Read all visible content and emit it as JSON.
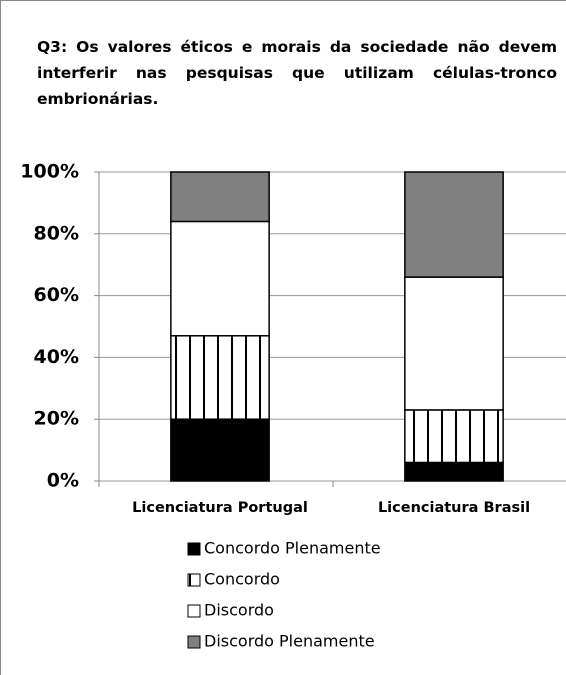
{
  "chart_data": {
    "type": "stacked_bar",
    "title": "Q3: Os valores éticos e morais da sociedade não devem interferir nas pesquisas que utilizam células-tronco embrionárias.",
    "categories": [
      "Licenciatura Portugal",
      "Licenciatura Brasil"
    ],
    "series": [
      {
        "name": "Concordo Plenamente",
        "color": "#000000",
        "values": [
          20,
          6
        ]
      },
      {
        "name": "Concordo",
        "color": "#ffffff",
        "pattern": "vertical-stripes",
        "values": [
          27,
          17
        ]
      },
      {
        "name": "Discordo",
        "color": "#ffffff",
        "values": [
          37,
          43
        ]
      },
      {
        "name": "Discordo Plenamente",
        "color": "#808080",
        "values": [
          16,
          34
        ]
      }
    ],
    "ylim": [
      0,
      100
    ],
    "yticks": [
      {
        "value": 0,
        "label": "0%"
      },
      {
        "value": 20,
        "label": "20%"
      },
      {
        "value": 40,
        "label": "40%"
      },
      {
        "value": 60,
        "label": "60%"
      },
      {
        "value": 80,
        "label": "80%"
      },
      {
        "value": 100,
        "label": "100%"
      }
    ],
    "grid": true
  }
}
